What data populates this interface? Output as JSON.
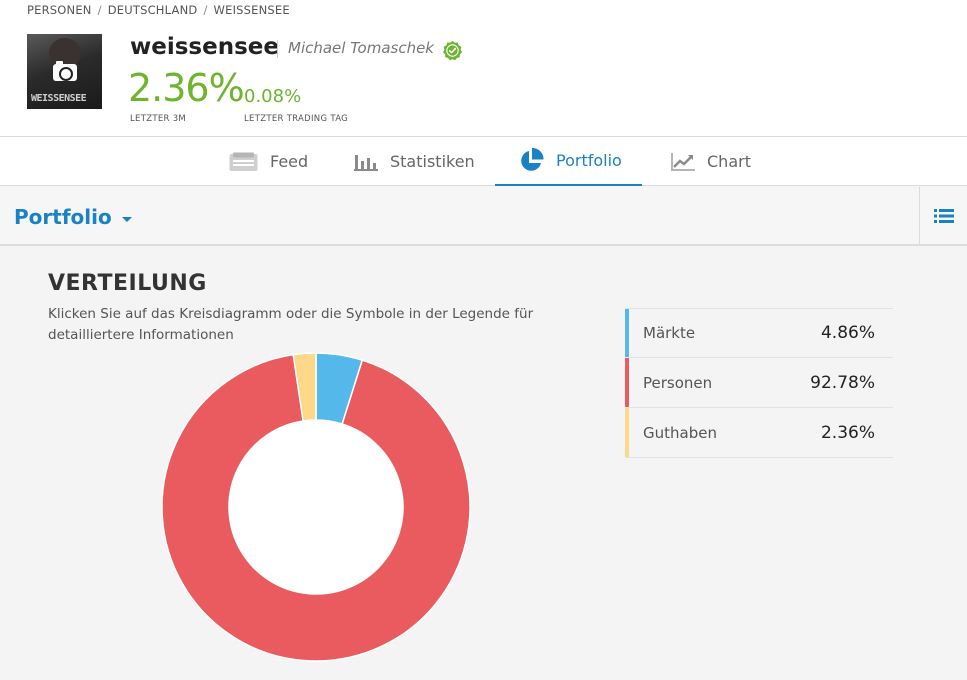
{
  "breadcrumb": {
    "items": [
      "PERSONEN",
      "DEUTSCHLAND",
      "WEISSENSEE"
    ],
    "separator": "/"
  },
  "profile": {
    "avatar_text": "WEISSENSEE",
    "username": "weissensee",
    "full_name": "Michael Tomaschek",
    "gain_3m": "2.36%",
    "gain_3m_label": "LETZTER 3M",
    "gain_day": "0.08%",
    "gain_day_label": "LETZTER TRADING TAG",
    "colors": {
      "gain": "#6eb42f",
      "verified": "#6eb42f"
    }
  },
  "tabs": [
    {
      "label": "Feed",
      "icon": "feed-icon",
      "active": false
    },
    {
      "label": "Statistiken",
      "icon": "bar-chart-icon",
      "active": false
    },
    {
      "label": "Portfolio",
      "icon": "pie-chart-icon",
      "active": true
    },
    {
      "label": "Chart",
      "icon": "line-chart-icon",
      "active": false
    }
  ],
  "subheader": {
    "title": "Portfolio"
  },
  "section": {
    "title": "VERTEILUNG",
    "description": "Klicken Sie auf das Kreisdiagramm oder die Symbole in der Legende für detailliertere Informationen"
  },
  "legend": [
    {
      "name": "Märkte",
      "value": "4.86%",
      "color": "#55b8ea"
    },
    {
      "name": "Personen",
      "value": "92.78%",
      "color": "#e95b5f"
    },
    {
      "name": "Guthaben",
      "value": "2.36%",
      "color": "#fcd888"
    }
  ],
  "chart_data": {
    "type": "pie",
    "donut": true,
    "categories": [
      "Märkte",
      "Personen",
      "Guthaben"
    ],
    "values": [
      4.86,
      92.78,
      2.36
    ],
    "colors": [
      "#55b8ea",
      "#e95b5f",
      "#fcd888"
    ]
  },
  "accent": "#1a82c4"
}
